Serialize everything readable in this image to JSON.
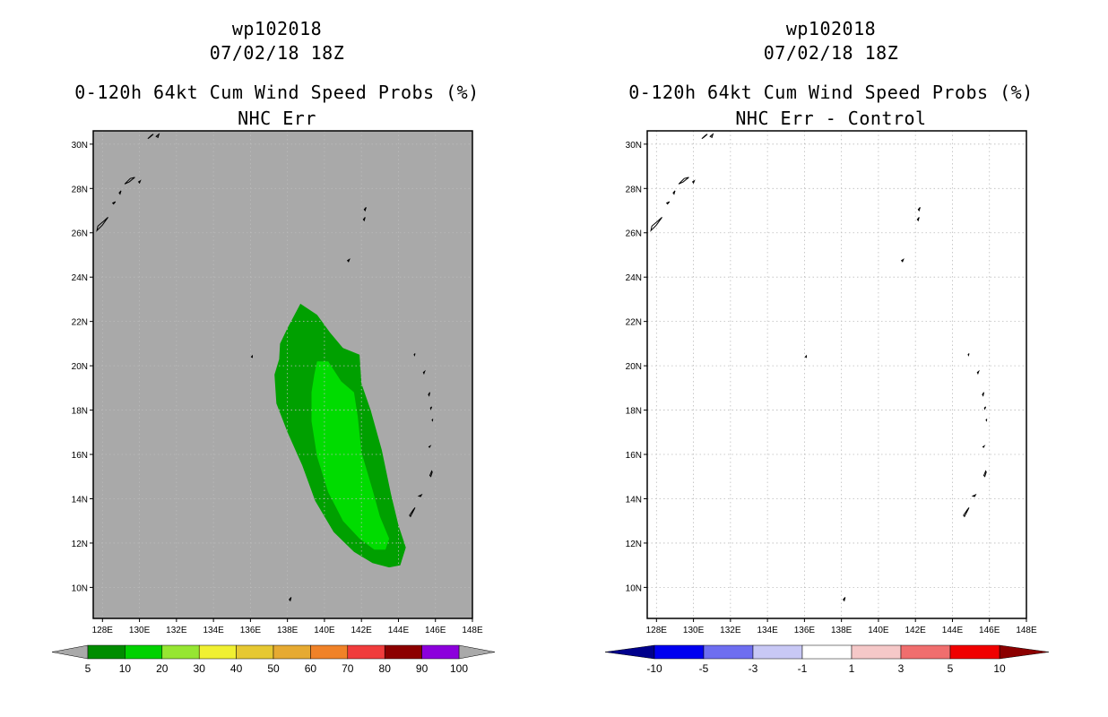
{
  "panels": [
    {
      "storm_id": "wp102018",
      "datetime": "07/02/18 18Z",
      "title": "0-120h 64kt Cum Wind Speed Probs (%)",
      "subtitle": "NHC Err",
      "background_color": "#a9a9a9",
      "colorbar": {
        "labels": [
          "5",
          "10",
          "20",
          "30",
          "40",
          "50",
          "60",
          "70",
          "80",
          "90",
          "100"
        ],
        "colors": [
          "#008c00",
          "#00d200",
          "#96e632",
          "#f0f032",
          "#e6c832",
          "#e6aa32",
          "#f08228",
          "#f03c3c",
          "#8c0000",
          "#8c00dc"
        ]
      },
      "contours": [
        {
          "level": "5-10",
          "color": "#00a000"
        },
        {
          "level": "10-20",
          "color": "#00dc00"
        }
      ]
    },
    {
      "storm_id": "wp102018",
      "datetime": "07/02/18 18Z",
      "title": "0-120h 64kt Cum Wind Speed Probs (%)",
      "subtitle": "NHC Err - Control",
      "background_color": "#ffffff",
      "colorbar": {
        "labels": [
          "-10",
          "-5",
          "-3",
          "-1",
          "1",
          "3",
          "5",
          "10"
        ],
        "colors": [
          "#00008c",
          "#0000f0",
          "#6e6ef0",
          "#c8c8f5",
          "#ffffff",
          "#f5c8c8",
          "#f06e6e",
          "#f00000",
          "#8c0000"
        ]
      }
    }
  ],
  "map": {
    "lon_labels": [
      "128E",
      "130E",
      "132E",
      "134E",
      "136E",
      "138E",
      "140E",
      "142E",
      "144E",
      "146E",
      "148E"
    ],
    "lat_labels": [
      "30N",
      "28N",
      "26N",
      "24N",
      "22N",
      "20N",
      "18N",
      "16N",
      "14N",
      "12N",
      "10N"
    ],
    "lon_range": [
      127.5,
      148
    ],
    "lat_range": [
      8.6,
      30.6
    ],
    "islands": [
      {
        "name": "Okinawa",
        "lonlat": [
          [
            127.7,
            26.1
          ],
          [
            128.0,
            26.35
          ],
          [
            128.3,
            26.7
          ],
          [
            128.1,
            26.55
          ],
          [
            127.75,
            26.3
          ]
        ]
      },
      {
        "name": "Amami",
        "lonlat": [
          [
            129.2,
            28.2
          ],
          [
            129.5,
            28.45
          ],
          [
            129.75,
            28.5
          ],
          [
            129.45,
            28.3
          ]
        ]
      },
      {
        "name": "Tokunoshima",
        "lonlat": [
          [
            128.9,
            27.8
          ],
          [
            129.0,
            27.9
          ],
          [
            128.95,
            27.75
          ]
        ]
      },
      {
        "name": "Okinoerabu",
        "lonlat": [
          [
            128.55,
            27.35
          ],
          [
            128.7,
            27.4
          ],
          [
            128.6,
            27.3
          ]
        ]
      },
      {
        "name": "Kikai",
        "lonlat": [
          [
            129.95,
            28.3
          ],
          [
            130.05,
            28.35
          ],
          [
            130.0,
            28.25
          ]
        ]
      },
      {
        "name": "Tanegashima",
        "lonlat": [
          [
            130.45,
            30.25
          ],
          [
            130.65,
            30.4
          ],
          [
            130.75,
            30.45
          ],
          [
            130.55,
            30.3
          ]
        ]
      },
      {
        "name": "Yakushima",
        "lonlat": [
          [
            130.9,
            30.35
          ],
          [
            131.05,
            30.45
          ],
          [
            131.0,
            30.3
          ]
        ]
      },
      {
        "name": "Chichijima",
        "lonlat": [
          [
            142.15,
            27.05
          ],
          [
            142.25,
            27.15
          ],
          [
            142.2,
            27.0
          ]
        ]
      },
      {
        "name": "Hahajima",
        "lonlat": [
          [
            142.1,
            26.6
          ],
          [
            142.2,
            26.7
          ],
          [
            142.15,
            26.55
          ]
        ]
      },
      {
        "name": "Iwo Jima",
        "lonlat": [
          [
            141.25,
            24.75
          ],
          [
            141.35,
            24.8
          ],
          [
            141.3,
            24.7
          ]
        ]
      },
      {
        "name": "Okinotorishima",
        "lonlat": [
          [
            136.05,
            20.4
          ],
          [
            136.1,
            20.45
          ],
          [
            136.1,
            20.38
          ]
        ]
      },
      {
        "name": "Uracas",
        "lonlat": [
          [
            144.85,
            20.5
          ],
          [
            144.9,
            20.55
          ],
          [
            144.87,
            20.47
          ]
        ]
      },
      {
        "name": "Asuncion",
        "lonlat": [
          [
            145.35,
            19.7
          ],
          [
            145.42,
            19.75
          ],
          [
            145.38,
            19.65
          ]
        ]
      },
      {
        "name": "Agrihan",
        "lonlat": [
          [
            145.62,
            18.7
          ],
          [
            145.7,
            18.8
          ],
          [
            145.66,
            18.65
          ]
        ]
      },
      {
        "name": "Pagan",
        "lonlat": [
          [
            145.75,
            18.05
          ],
          [
            145.8,
            18.15
          ],
          [
            145.73,
            18.1
          ]
        ]
      },
      {
        "name": "Alamagan",
        "lonlat": [
          [
            145.82,
            17.55
          ],
          [
            145.86,
            17.6
          ],
          [
            145.84,
            17.52
          ]
        ]
      },
      {
        "name": "Anatahan",
        "lonlat": [
          [
            145.65,
            16.35
          ],
          [
            145.72,
            16.38
          ],
          [
            145.68,
            16.32
          ]
        ]
      },
      {
        "name": "Saipan",
        "lonlat": [
          [
            145.7,
            15.05
          ],
          [
            145.8,
            15.25
          ],
          [
            145.83,
            15.2
          ],
          [
            145.75,
            15.0
          ]
        ]
      },
      {
        "name": "Rota",
        "lonlat": [
          [
            145.1,
            14.12
          ],
          [
            145.25,
            14.18
          ],
          [
            145.2,
            14.1
          ]
        ]
      },
      {
        "name": "Guam",
        "lonlat": [
          [
            144.6,
            13.25
          ],
          [
            144.8,
            13.5
          ],
          [
            144.9,
            13.6
          ],
          [
            144.75,
            13.35
          ],
          [
            144.65,
            13.2
          ]
        ]
      },
      {
        "name": "Parece Vela",
        "lonlat": [
          [
            138.1,
            9.45
          ],
          [
            138.2,
            9.55
          ],
          [
            138.15,
            9.4
          ]
        ]
      }
    ],
    "contour_outer": [
      [
        137.3,
        19.6
      ],
      [
        137.55,
        20.3
      ],
      [
        137.6,
        21.0
      ],
      [
        138.0,
        21.7
      ],
      [
        138.7,
        22.8
      ],
      [
        139.6,
        22.3
      ],
      [
        140.3,
        21.5
      ],
      [
        141.0,
        20.8
      ],
      [
        141.9,
        20.5
      ],
      [
        142.0,
        19.2
      ],
      [
        142.5,
        18.0
      ],
      [
        143.1,
        16.2
      ],
      [
        143.6,
        14.2
      ],
      [
        144.0,
        12.8
      ],
      [
        144.4,
        11.8
      ],
      [
        144.1,
        11.0
      ],
      [
        143.5,
        10.9
      ],
      [
        142.6,
        11.1
      ],
      [
        141.6,
        11.6
      ],
      [
        140.5,
        12.5
      ],
      [
        139.5,
        13.9
      ],
      [
        138.8,
        15.5
      ],
      [
        138.0,
        17.0
      ],
      [
        137.4,
        18.3
      ]
    ],
    "contour_inner": [
      [
        139.3,
        18.8
      ],
      [
        139.45,
        19.6
      ],
      [
        139.6,
        20.2
      ],
      [
        140.2,
        20.2
      ],
      [
        140.9,
        19.3
      ],
      [
        141.6,
        18.8
      ],
      [
        141.8,
        17.7
      ],
      [
        142.0,
        16.1
      ],
      [
        142.6,
        14.4
      ],
      [
        143.0,
        13.2
      ],
      [
        143.5,
        12.2
      ],
      [
        143.3,
        11.7
      ],
      [
        142.7,
        11.7
      ],
      [
        141.9,
        12.2
      ],
      [
        141.0,
        13.0
      ],
      [
        140.2,
        14.3
      ],
      [
        139.6,
        15.9
      ],
      [
        139.3,
        17.5
      ]
    ]
  }
}
